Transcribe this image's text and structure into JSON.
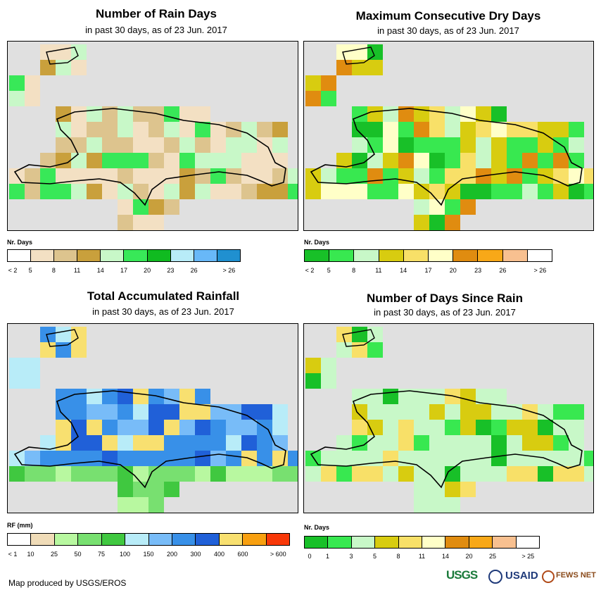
{
  "panels": [
    {
      "id": "rain-days",
      "title": "Number of Rain Days",
      "subtitle": "in past 30 days, as of 23 Jun. 2017",
      "legend_title": "Nr. Days",
      "legend_colors": [
        "#ffffff",
        "#f3e0c3",
        "#ddc48e",
        "#c9a03c",
        "#c8f8c8",
        "#38e858",
        "#10bb20",
        "#b8ecf8",
        "#68b8f8",
        "#2090d0"
      ],
      "legend_labels": [
        "< 2",
        "5",
        "8",
        "11",
        "14",
        "17",
        "20",
        "23",
        "26",
        "> 26"
      ],
      "label_mode": "right"
    },
    {
      "id": "max-dry-days",
      "title": "Maximum Consecutive Dry Days",
      "subtitle": "in past 30 days, as of 23 Jun. 2017",
      "legend_title": "Nr. Days",
      "legend_colors": [
        "#18c028",
        "#38e850",
        "#c8f8c8",
        "#d8cc10",
        "#f8e068",
        "#ffffc8",
        "#e08c10",
        "#f8a818",
        "#f8c090",
        "#ffffff"
      ],
      "legend_labels": [
        "< 2",
        "5",
        "8",
        "11",
        "14",
        "17",
        "20",
        "23",
        "26",
        "> 26"
      ],
      "label_mode": "right"
    },
    {
      "id": "total-rainfall",
      "title": "Total Accumulated Rainfall",
      "subtitle": "in past 30 days, as of 23 Jun. 2017",
      "legend_title": "RF (mm)",
      "legend_colors": [
        "#ffffff",
        "#f0dcb8",
        "#b8f8a0",
        "#78e070",
        "#40c840",
        "#b8ecf8",
        "#78bcf8",
        "#3890e8",
        "#2060d8",
        "#f8e070",
        "#f8a010",
        "#f83808"
      ],
      "legend_labels": [
        "< 1",
        "10",
        "25",
        "50",
        "75",
        "100",
        "150",
        "200",
        "300",
        "400",
        "600",
        "> 600"
      ],
      "label_mode": "right"
    },
    {
      "id": "days-since-rain",
      "title": "Number of Days Since Rain",
      "subtitle": "in past 30 days, as of 23 Jun. 2017",
      "legend_title": "Nr. Days",
      "legend_colors": [
        "#18c028",
        "#38e850",
        "#c8f8c8",
        "#d8cc10",
        "#f8e068",
        "#ffffc8",
        "#e08c10",
        "#f8a818",
        "#f8c090",
        "#ffffff"
      ],
      "legend_labels": [
        "0",
        "1",
        "3",
        "5",
        "8",
        "11",
        "14",
        "20",
        "25",
        "> 25"
      ],
      "label_mode": "right"
    }
  ],
  "footer": {
    "credit": "Map produced by USGS/EROS",
    "logos": [
      "USGS",
      "USAID",
      "FEWS NET"
    ]
  }
}
